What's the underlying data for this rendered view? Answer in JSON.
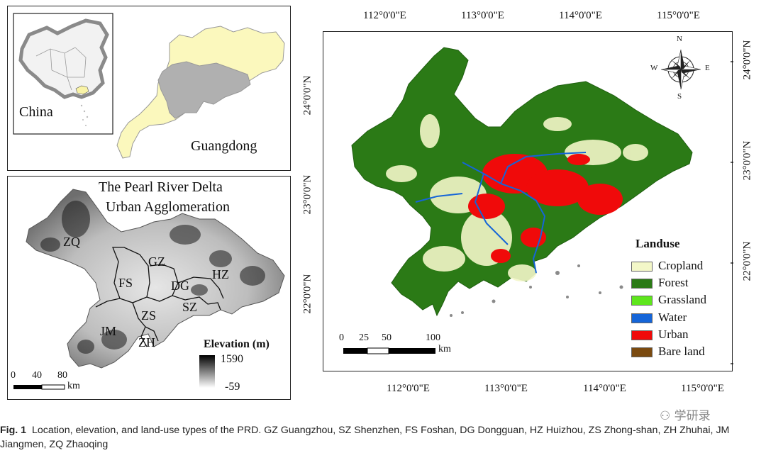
{
  "inset_china": {
    "country_label": "China",
    "province_label": "Guangdong"
  },
  "prd_map": {
    "title_line1": "The Pearl River Delta",
    "title_line2": "Urban Agglomeration",
    "cities": [
      "ZQ",
      "GZ",
      "FS",
      "HZ",
      "DG",
      "SZ",
      "ZS",
      "JM",
      "ZH"
    ],
    "elevation_title": "Elevation (m)",
    "elevation_max": "1590",
    "elevation_min": "-59",
    "scale_ticks": [
      "0",
      "40",
      "80"
    ],
    "scale_unit": "km"
  },
  "landuse_map": {
    "lon_labels": [
      "112°0'0\"E",
      "113°0'0\"E",
      "114°0'0\"E",
      "115°0'0\"E"
    ],
    "lat_labels": [
      "24°0'0\"N",
      "23°0'0\"N",
      "22°0'0\"N"
    ],
    "compass": {
      "n": "N",
      "s": "S",
      "e": "E",
      "w": "W"
    },
    "scale_ticks": [
      "0",
      "25",
      "50",
      "100"
    ],
    "scale_unit": "km",
    "legend_title": "Landuse",
    "legend": [
      {
        "label": "Cropland",
        "color": "#f3f7c8"
      },
      {
        "label": "Forest",
        "color": "#2b7a16"
      },
      {
        "label": "Grassland",
        "color": "#5ee61c"
      },
      {
        "label": "Water",
        "color": "#1565d8"
      },
      {
        "label": "Urban",
        "color": "#f00a0a"
      },
      {
        "label": "Bare land",
        "color": "#7a4a10"
      }
    ]
  },
  "caption": {
    "fig_label": "Fig. 1",
    "text": "Location, elevation, and land-use types of the PRD. GZ Guangzhou, SZ Shenzhen, FS Foshan, DG Dongguan, HZ Huizhou, ZS Zhong-shan, ZH Zhuhai, JM Jiangmen, ZQ Zhaoqing"
  },
  "watermark": "学研录"
}
